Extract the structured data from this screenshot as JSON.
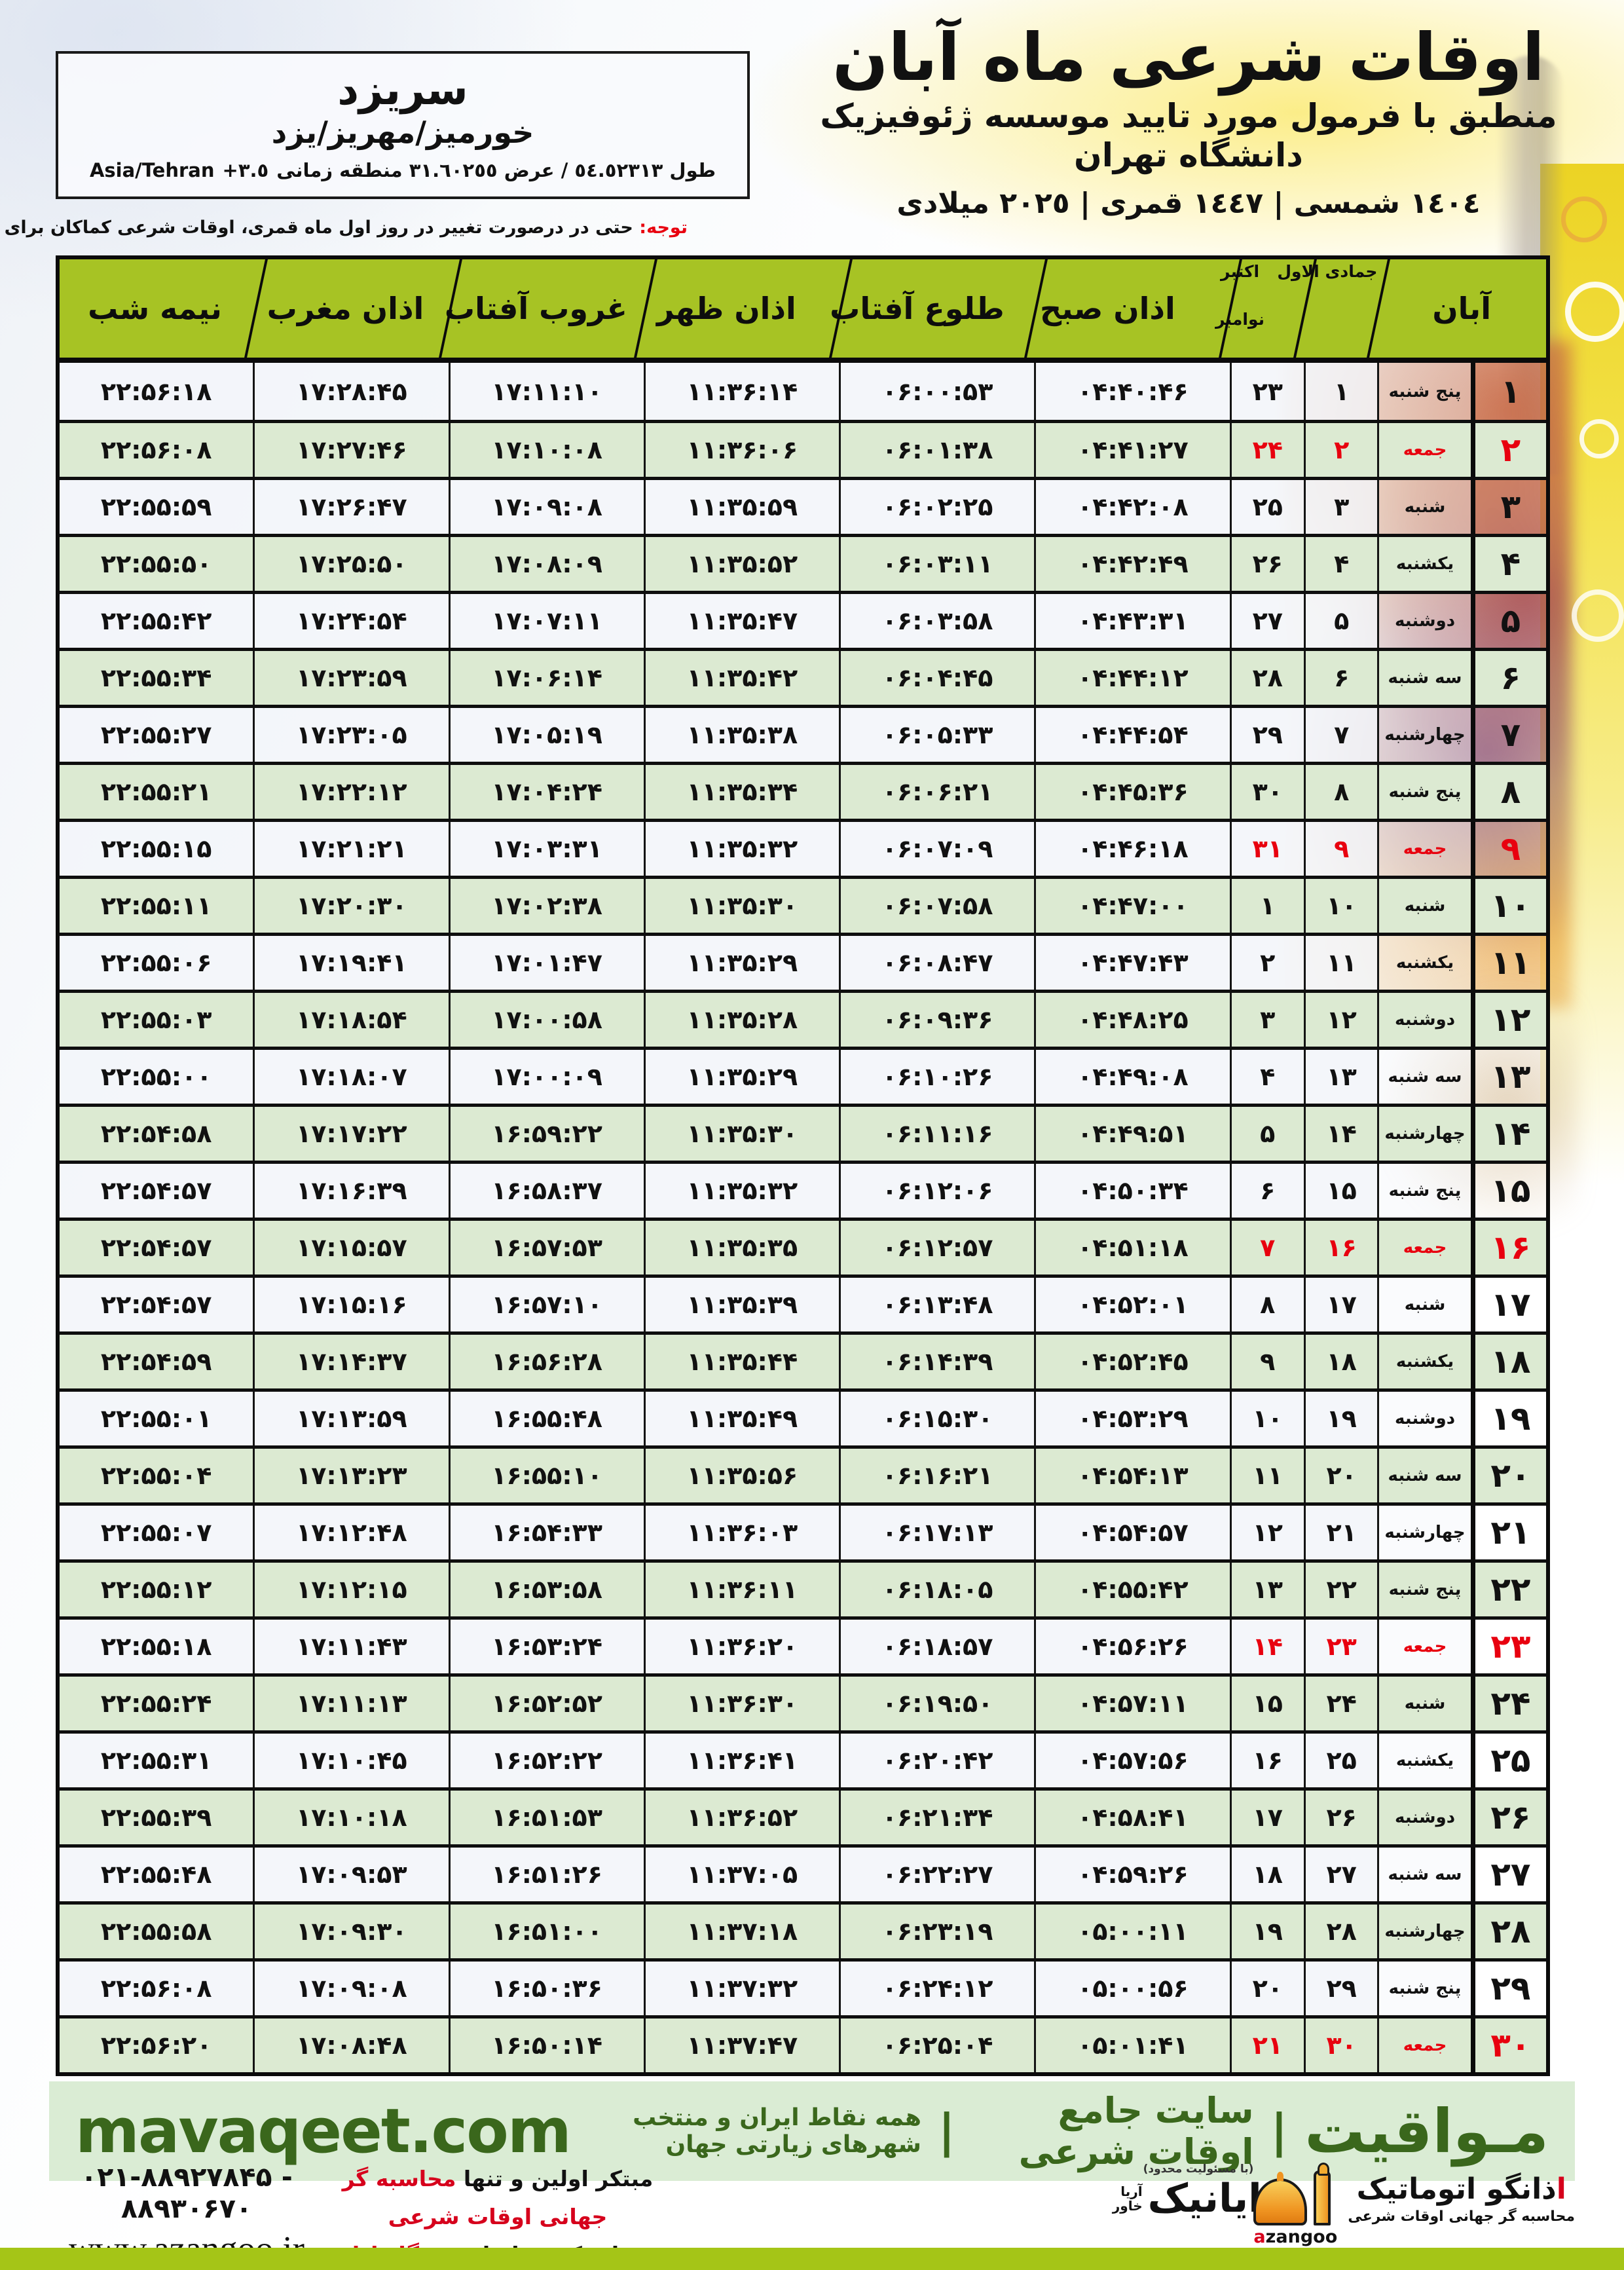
{
  "location": {
    "city": "سریزد",
    "region": "خورمیز/مهریز/یزد",
    "coords_label": "طول ٥٤.٥٢٣١٣ / عرض ٣١.٦٠٢٥٥ منطقه زمانی",
    "coords_offset": "+٣.٥",
    "coords_tz": "Asia/Tehran"
  },
  "header": {
    "title": "اوقات شرعی ماه آبان",
    "subtitle": "منطبق با فرمول مورد تایید موسسه ژئوفیزیک دانشگاه تهران",
    "years": "١٤٠٤ شمسی | ١٤٤٧ قمری | ٢٠٢٥ میلادی"
  },
  "notice": {
    "label": "توجه:",
    "text": "حتی در درصورت تغییر در روز اول ماه قمری، اوقات شرعی کماکان برای روزهای شمسی و میلادی معتبر است."
  },
  "table": {
    "col_headers": {
      "month": "آبان",
      "hijri_month": "جمادی الاول",
      "greg_month_1": "اکتبر",
      "greg_month_2": "نوامبر",
      "fajr": "اذان صبح",
      "sunrise": "طلوع آفتاب",
      "noon": "اذان ظهر",
      "sunset": "غروب آفتاب",
      "maghrib": "اذان مغرب",
      "midnight": "نیمه شب"
    },
    "rows": [
      {
        "aban": "۱",
        "weekday": "پنج شنبه",
        "hijri": "۱",
        "greg": "۲۳",
        "fajr": "۰۴:۴۰:۴۶",
        "sunrise": "۰۶:۰۰:۵۳",
        "noon": "۱۱:۳۶:۱۴",
        "sunset": "۱۷:۱۱:۱۰",
        "maghrib": "۱۷:۲۸:۴۵",
        "midnight": "۲۲:۵۶:۱۸",
        "friday": false
      },
      {
        "aban": "۲",
        "weekday": "جمعه",
        "hijri": "۲",
        "greg": "۲۴",
        "fajr": "۰۴:۴۱:۲۷",
        "sunrise": "۰۶:۰۱:۳۸",
        "noon": "۱۱:۳۶:۰۶",
        "sunset": "۱۷:۱۰:۰۸",
        "maghrib": "۱۷:۲۷:۴۶",
        "midnight": "۲۲:۵۶:۰۸",
        "friday": true
      },
      {
        "aban": "۳",
        "weekday": "شنبه",
        "hijri": "۳",
        "greg": "۲۵",
        "fajr": "۰۴:۴۲:۰۸",
        "sunrise": "۰۶:۰۲:۲۵",
        "noon": "۱۱:۳۵:۵۹",
        "sunset": "۱۷:۰۹:۰۸",
        "maghrib": "۱۷:۲۶:۴۷",
        "midnight": "۲۲:۵۵:۵۹",
        "friday": false
      },
      {
        "aban": "۴",
        "weekday": "یکشنبه",
        "hijri": "۴",
        "greg": "۲۶",
        "fajr": "۰۴:۴۲:۴۹",
        "sunrise": "۰۶:۰۳:۱۱",
        "noon": "۱۱:۳۵:۵۲",
        "sunset": "۱۷:۰۸:۰۹",
        "maghrib": "۱۷:۲۵:۵۰",
        "midnight": "۲۲:۵۵:۵۰",
        "friday": false
      },
      {
        "aban": "۵",
        "weekday": "دوشنبه",
        "hijri": "۵",
        "greg": "۲۷",
        "fajr": "۰۴:۴۳:۳۱",
        "sunrise": "۰۶:۰۳:۵۸",
        "noon": "۱۱:۳۵:۴۷",
        "sunset": "۱۷:۰۷:۱۱",
        "maghrib": "۱۷:۲۴:۵۴",
        "midnight": "۲۲:۵۵:۴۲",
        "friday": false
      },
      {
        "aban": "۶",
        "weekday": "سه شنبه",
        "hijri": "۶",
        "greg": "۲۸",
        "fajr": "۰۴:۴۴:۱۲",
        "sunrise": "۰۶:۰۴:۴۵",
        "noon": "۱۱:۳۵:۴۲",
        "sunset": "۱۷:۰۶:۱۴",
        "maghrib": "۱۷:۲۳:۵۹",
        "midnight": "۲۲:۵۵:۳۴",
        "friday": false
      },
      {
        "aban": "۷",
        "weekday": "چهارشنبه",
        "hijri": "۷",
        "greg": "۲۹",
        "fajr": "۰۴:۴۴:۵۴",
        "sunrise": "۰۶:۰۵:۳۳",
        "noon": "۱۱:۳۵:۳۸",
        "sunset": "۱۷:۰۵:۱۹",
        "maghrib": "۱۷:۲۳:۰۵",
        "midnight": "۲۲:۵۵:۲۷",
        "friday": false
      },
      {
        "aban": "۸",
        "weekday": "پنج شنبه",
        "hijri": "۸",
        "greg": "۳۰",
        "fajr": "۰۴:۴۵:۳۶",
        "sunrise": "۰۶:۰۶:۲۱",
        "noon": "۱۱:۳۵:۳۴",
        "sunset": "۱۷:۰۴:۲۴",
        "maghrib": "۱۷:۲۲:۱۲",
        "midnight": "۲۲:۵۵:۲۱",
        "friday": false
      },
      {
        "aban": "۹",
        "weekday": "جمعه",
        "hijri": "۹",
        "greg": "۳۱",
        "fajr": "۰۴:۴۶:۱۸",
        "sunrise": "۰۶:۰۷:۰۹",
        "noon": "۱۱:۳۵:۳۲",
        "sunset": "۱۷:۰۳:۳۱",
        "maghrib": "۱۷:۲۱:۲۱",
        "midnight": "۲۲:۵۵:۱۵",
        "friday": true
      },
      {
        "aban": "۱۰",
        "weekday": "شنبه",
        "hijri": "۱۰",
        "greg": "۱",
        "fajr": "۰۴:۴۷:۰۰",
        "sunrise": "۰۶:۰۷:۵۸",
        "noon": "۱۱:۳۵:۳۰",
        "sunset": "۱۷:۰۲:۳۸",
        "maghrib": "۱۷:۲۰:۳۰",
        "midnight": "۲۲:۵۵:۱۱",
        "friday": false
      },
      {
        "aban": "۱۱",
        "weekday": "یکشنبه",
        "hijri": "۱۱",
        "greg": "۲",
        "fajr": "۰۴:۴۷:۴۳",
        "sunrise": "۰۶:۰۸:۴۷",
        "noon": "۱۱:۳۵:۲۹",
        "sunset": "۱۷:۰۱:۴۷",
        "maghrib": "۱۷:۱۹:۴۱",
        "midnight": "۲۲:۵۵:۰۶",
        "friday": false
      },
      {
        "aban": "۱۲",
        "weekday": "دوشنبه",
        "hijri": "۱۲",
        "greg": "۳",
        "fajr": "۰۴:۴۸:۲۵",
        "sunrise": "۰۶:۰۹:۳۶",
        "noon": "۱۱:۳۵:۲۸",
        "sunset": "۱۷:۰۰:۵۸",
        "maghrib": "۱۷:۱۸:۵۴",
        "midnight": "۲۲:۵۵:۰۳",
        "friday": false
      },
      {
        "aban": "۱۳",
        "weekday": "سه شنبه",
        "hijri": "۱۳",
        "greg": "۴",
        "fajr": "۰۴:۴۹:۰۸",
        "sunrise": "۰۶:۱۰:۲۶",
        "noon": "۱۱:۳۵:۲۹",
        "sunset": "۱۷:۰۰:۰۹",
        "maghrib": "۱۷:۱۸:۰۷",
        "midnight": "۲۲:۵۵:۰۰",
        "friday": false
      },
      {
        "aban": "۱۴",
        "weekday": "چهارشنبه",
        "hijri": "۱۴",
        "greg": "۵",
        "fajr": "۰۴:۴۹:۵۱",
        "sunrise": "۰۶:۱۱:۱۶",
        "noon": "۱۱:۳۵:۳۰",
        "sunset": "۱۶:۵۹:۲۲",
        "maghrib": "۱۷:۱۷:۲۲",
        "midnight": "۲۲:۵۴:۵۸",
        "friday": false
      },
      {
        "aban": "۱۵",
        "weekday": "پنج شنبه",
        "hijri": "۱۵",
        "greg": "۶",
        "fajr": "۰۴:۵۰:۳۴",
        "sunrise": "۰۶:۱۲:۰۶",
        "noon": "۱۱:۳۵:۳۲",
        "sunset": "۱۶:۵۸:۳۷",
        "maghrib": "۱۷:۱۶:۳۹",
        "midnight": "۲۲:۵۴:۵۷",
        "friday": false
      },
      {
        "aban": "۱۶",
        "weekday": "جمعه",
        "hijri": "۱۶",
        "greg": "۷",
        "fajr": "۰۴:۵۱:۱۸",
        "sunrise": "۰۶:۱۲:۵۷",
        "noon": "۱۱:۳۵:۳۵",
        "sunset": "۱۶:۵۷:۵۳",
        "maghrib": "۱۷:۱۵:۵۷",
        "midnight": "۲۲:۵۴:۵۷",
        "friday": true
      },
      {
        "aban": "۱۷",
        "weekday": "شنبه",
        "hijri": "۱۷",
        "greg": "۸",
        "fajr": "۰۴:۵۲:۰۱",
        "sunrise": "۰۶:۱۳:۴۸",
        "noon": "۱۱:۳۵:۳۹",
        "sunset": "۱۶:۵۷:۱۰",
        "maghrib": "۱۷:۱۵:۱۶",
        "midnight": "۲۲:۵۴:۵۷",
        "friday": false
      },
      {
        "aban": "۱۸",
        "weekday": "یکشنبه",
        "hijri": "۱۸",
        "greg": "۹",
        "fajr": "۰۴:۵۲:۴۵",
        "sunrise": "۰۶:۱۴:۳۹",
        "noon": "۱۱:۳۵:۴۴",
        "sunset": "۱۶:۵۶:۲۸",
        "maghrib": "۱۷:۱۴:۳۷",
        "midnight": "۲۲:۵۴:۵۹",
        "friday": false
      },
      {
        "aban": "۱۹",
        "weekday": "دوشنبه",
        "hijri": "۱۹",
        "greg": "۱۰",
        "fajr": "۰۴:۵۳:۲۹",
        "sunrise": "۰۶:۱۵:۳۰",
        "noon": "۱۱:۳۵:۴۹",
        "sunset": "۱۶:۵۵:۴۸",
        "maghrib": "۱۷:۱۳:۵۹",
        "midnight": "۲۲:۵۵:۰۱",
        "friday": false
      },
      {
        "aban": "۲۰",
        "weekday": "سه شنبه",
        "hijri": "۲۰",
        "greg": "۱۱",
        "fajr": "۰۴:۵۴:۱۳",
        "sunrise": "۰۶:۱۶:۲۱",
        "noon": "۱۱:۳۵:۵۶",
        "sunset": "۱۶:۵۵:۱۰",
        "maghrib": "۱۷:۱۳:۲۳",
        "midnight": "۲۲:۵۵:۰۴",
        "friday": false
      },
      {
        "aban": "۲۱",
        "weekday": "چهارشنبه",
        "hijri": "۲۱",
        "greg": "۱۲",
        "fajr": "۰۴:۵۴:۵۷",
        "sunrise": "۰۶:۱۷:۱۳",
        "noon": "۱۱:۳۶:۰۳",
        "sunset": "۱۶:۵۴:۳۳",
        "maghrib": "۱۷:۱۲:۴۸",
        "midnight": "۲۲:۵۵:۰۷",
        "friday": false
      },
      {
        "aban": "۲۲",
        "weekday": "پنج شنبه",
        "hijri": "۲۲",
        "greg": "۱۳",
        "fajr": "۰۴:۵۵:۴۲",
        "sunrise": "۰۶:۱۸:۰۵",
        "noon": "۱۱:۳۶:۱۱",
        "sunset": "۱۶:۵۳:۵۸",
        "maghrib": "۱۷:۱۲:۱۵",
        "midnight": "۲۲:۵۵:۱۲",
        "friday": false
      },
      {
        "aban": "۲۳",
        "weekday": "جمعه",
        "hijri": "۲۳",
        "greg": "۱۴",
        "fajr": "۰۴:۵۶:۲۶",
        "sunrise": "۰۶:۱۸:۵۷",
        "noon": "۱۱:۳۶:۲۰",
        "sunset": "۱۶:۵۳:۲۴",
        "maghrib": "۱۷:۱۱:۴۳",
        "midnight": "۲۲:۵۵:۱۸",
        "friday": true
      },
      {
        "aban": "۲۴",
        "weekday": "شنبه",
        "hijri": "۲۴",
        "greg": "۱۵",
        "fajr": "۰۴:۵۷:۱۱",
        "sunrise": "۰۶:۱۹:۵۰",
        "noon": "۱۱:۳۶:۳۰",
        "sunset": "۱۶:۵۲:۵۲",
        "maghrib": "۱۷:۱۱:۱۳",
        "midnight": "۲۲:۵۵:۲۴",
        "friday": false
      },
      {
        "aban": "۲۵",
        "weekday": "یکشنبه",
        "hijri": "۲۵",
        "greg": "۱۶",
        "fajr": "۰۴:۵۷:۵۶",
        "sunrise": "۰۶:۲۰:۴۲",
        "noon": "۱۱:۳۶:۴۱",
        "sunset": "۱۶:۵۲:۲۲",
        "maghrib": "۱۷:۱۰:۴۵",
        "midnight": "۲۲:۵۵:۳۱",
        "friday": false
      },
      {
        "aban": "۲۶",
        "weekday": "دوشنبه",
        "hijri": "۲۶",
        "greg": "۱۷",
        "fajr": "۰۴:۵۸:۴۱",
        "sunrise": "۰۶:۲۱:۳۴",
        "noon": "۱۱:۳۶:۵۲",
        "sunset": "۱۶:۵۱:۵۳",
        "maghrib": "۱۷:۱۰:۱۸",
        "midnight": "۲۲:۵۵:۳۹",
        "friday": false
      },
      {
        "aban": "۲۷",
        "weekday": "سه شنبه",
        "hijri": "۲۷",
        "greg": "۱۸",
        "fajr": "۰۴:۵۹:۲۶",
        "sunrise": "۰۶:۲۲:۲۷",
        "noon": "۱۱:۳۷:۰۵",
        "sunset": "۱۶:۵۱:۲۶",
        "maghrib": "۱۷:۰۹:۵۳",
        "midnight": "۲۲:۵۵:۴۸",
        "friday": false
      },
      {
        "aban": "۲۸",
        "weekday": "چهارشنبه",
        "hijri": "۲۸",
        "greg": "۱۹",
        "fajr": "۰۵:۰۰:۱۱",
        "sunrise": "۰۶:۲۳:۱۹",
        "noon": "۱۱:۳۷:۱۸",
        "sunset": "۱۶:۵۱:۰۰",
        "maghrib": "۱۷:۰۹:۳۰",
        "midnight": "۲۲:۵۵:۵۸",
        "friday": false
      },
      {
        "aban": "۲۹",
        "weekday": "پنج شنبه",
        "hijri": "۲۹",
        "greg": "۲۰",
        "fajr": "۰۵:۰۰:۵۶",
        "sunrise": "۰۶:۲۴:۱۲",
        "noon": "۱۱:۳۷:۳۲",
        "sunset": "۱۶:۵۰:۳۶",
        "maghrib": "۱۷:۰۹:۰۸",
        "midnight": "۲۲:۵۶:۰۸",
        "friday": false
      },
      {
        "aban": "۳۰",
        "weekday": "جمعه",
        "hijri": "۳۰",
        "greg": "۲۱",
        "fajr": "۰۵:۰۱:۴۱",
        "sunrise": "۰۶:۲۵:۰۴",
        "noon": "۱۱:۳۷:۴۷",
        "sunset": "۱۶:۵۰:۱۴",
        "maghrib": "۱۷:۰۸:۴۸",
        "midnight": "۲۲:۵۶:۲۰",
        "friday": true
      }
    ]
  },
  "footer": {
    "brand_fa": "مـواقیت",
    "divider": "|",
    "site_desc": "سایت جامع اوقات شرعی",
    "site_scope": "همه نقاط ایران و منتخب شهرهای زیارتی جهان",
    "domain": "mavaqeet.com",
    "phone": "۰۲۱-۸۸۹۲۷۸۴۵ - ۸۸۹۳۰۶۷۰",
    "website": "www.azangoo.ir",
    "tagline_1_black": "مبتکر اولین و تنها",
    "tagline_1_red": "محاسبه گر جهانی اوقات شرعی",
    "tagline_2_black": "و تولید کننده انواع",
    "tagline_2_red": "دستگاه اذان گوی تمام خودکار ماهواره ای",
    "rayanik_note": "(با مسئولیت محدود)",
    "rayanik_first_letter": "ر",
    "rayanik_rest": "ایانیک",
    "rayanik_sub1": "آریا",
    "rayanik_sub2": "خاور",
    "azangoo_first_letter": "ا",
    "azangoo_rest": "ذانگو اتوماتیک",
    "azangoo_sub": "محاسبه گر جهانی اوقات شرعی",
    "azangoo_latin_first": "a",
    "azangoo_latin_rest": "zangoo"
  },
  "colors": {
    "header_green": "#a7c324",
    "row_green": "#dcead2",
    "friday_red": "#e8000f",
    "footer_bg_green": "#daecd4",
    "footer_dark_green": "#3a671c",
    "bottom_bar_green": "#a5c517"
  }
}
